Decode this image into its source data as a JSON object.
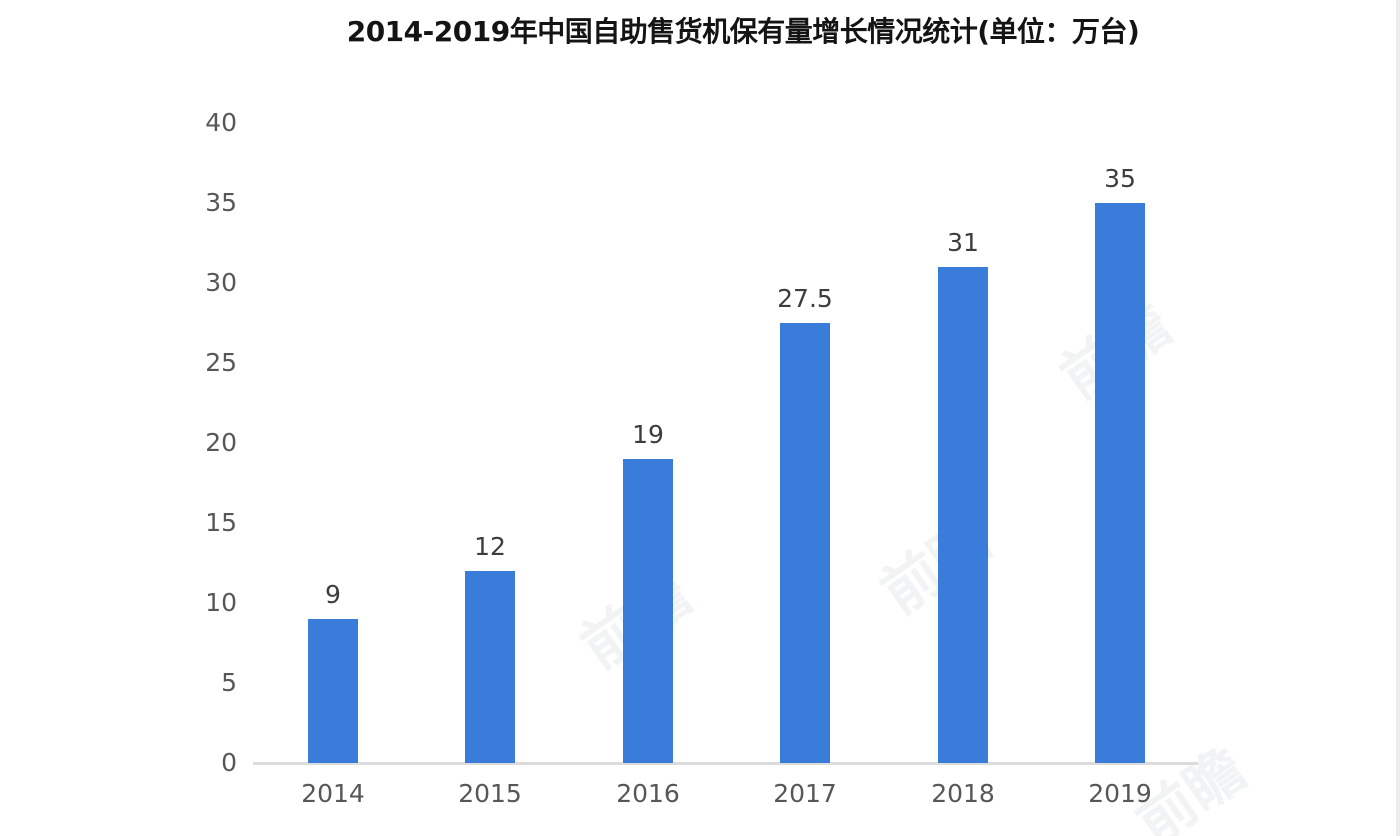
{
  "chart_data": {
    "type": "bar",
    "title": "2014-2019年中国自助售货机保有量增长情况统计(单位：万台)",
    "categories": [
      "2014",
      "2015",
      "2016",
      "2017",
      "2018",
      "2019"
    ],
    "values": [
      9,
      12,
      19,
      27.5,
      31,
      35
    ],
    "value_labels": [
      "9",
      "12",
      "19",
      "27.5",
      "31",
      "35"
    ],
    "y_ticks": [
      0,
      5,
      10,
      15,
      20,
      25,
      30,
      35,
      40
    ],
    "ylim": [
      0,
      40
    ],
    "y_tick_interval": 5,
    "xlabel": "",
    "ylabel": "",
    "grid": "off",
    "legend": "none",
    "bar_color": "#3a7cda",
    "axis_line_color": "#dcdcdc",
    "tick_label_color": "#575757",
    "value_label_color": "#3d3d3d",
    "title_color": "#141414",
    "background_color": "#ffffff"
  },
  "watermark": {
    "text": "前瞻"
  }
}
